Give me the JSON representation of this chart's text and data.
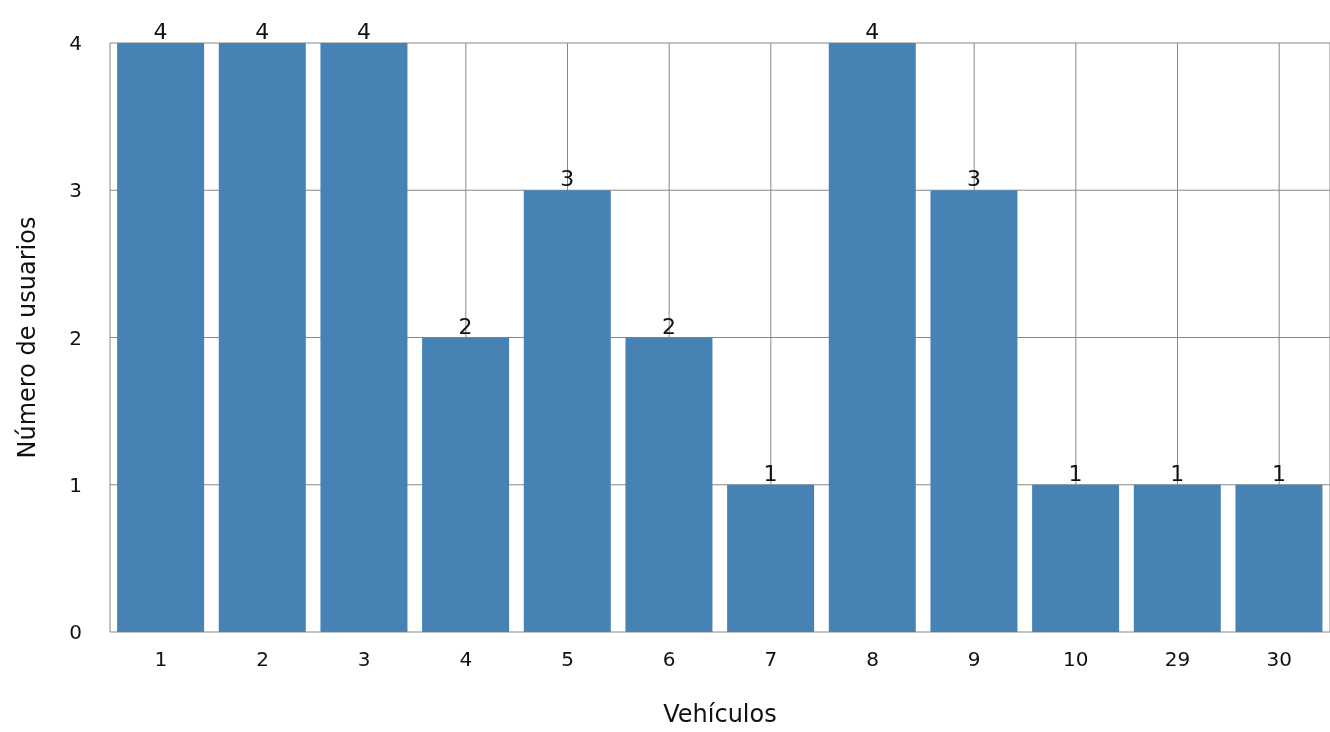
{
  "chart_data": {
    "type": "bar",
    "xlabel": "Vehículos",
    "ylabel": "Número de usuarios",
    "categories": [
      "1",
      "2",
      "3",
      "4",
      "5",
      "6",
      "7",
      "8",
      "9",
      "10",
      "29",
      "30"
    ],
    "values": [
      4,
      4,
      4,
      2,
      3,
      2,
      1,
      4,
      3,
      1,
      1,
      1
    ],
    "color": "#4682b4",
    "ylim": [
      0,
      4
    ],
    "yticks": [
      0,
      1,
      2,
      3,
      4
    ],
    "grid": true,
    "data_labels": true
  }
}
